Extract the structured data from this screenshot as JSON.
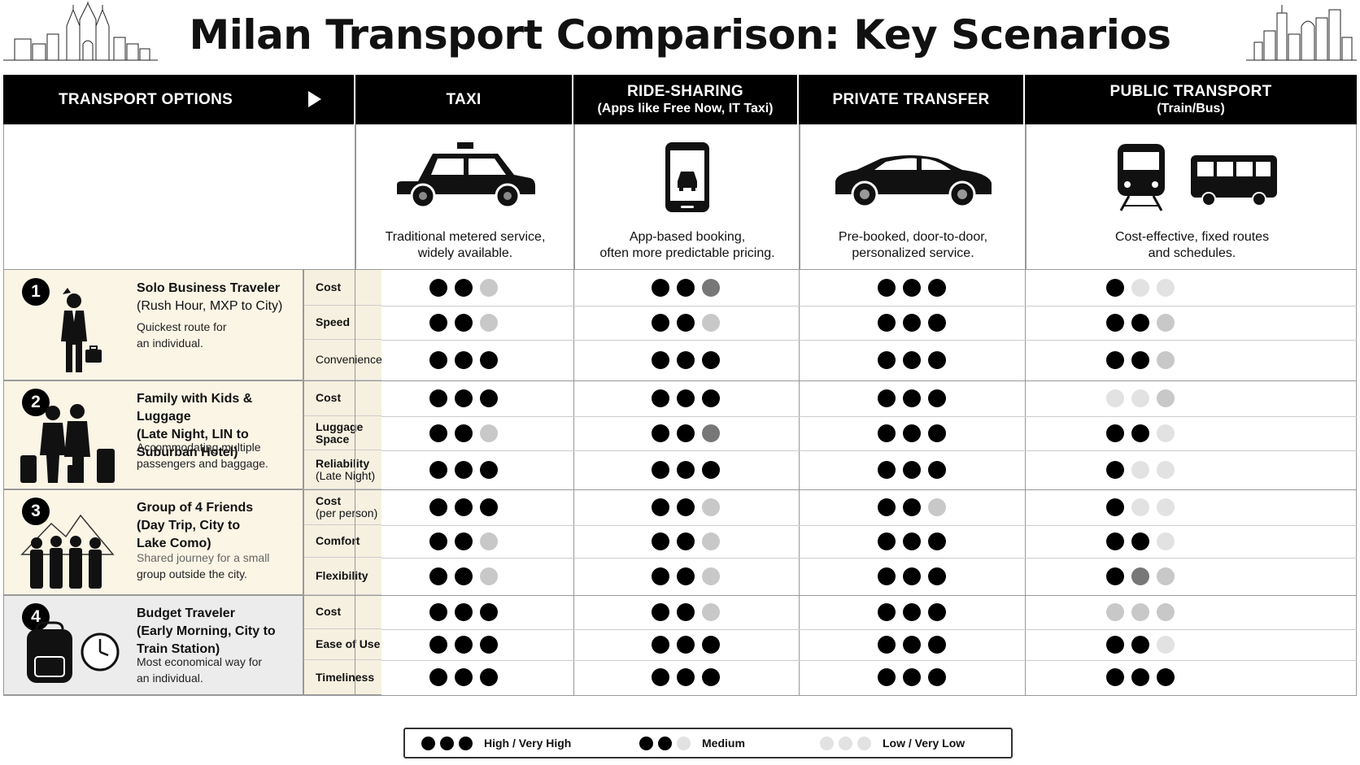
{
  "title": "Milan Transport Comparison: Key Scenarios",
  "header": {
    "options_label": "TRANSPORT OPTIONS",
    "columns": [
      {
        "main": "TAXI",
        "sub": ""
      },
      {
        "main": "RIDE-SHARING",
        "sub": "(Apps like Free Now, IT Taxi)"
      },
      {
        "main": "PRIVATE TRANSFER",
        "sub": ""
      },
      {
        "main": "PUBLIC TRANSPORT",
        "sub": "(Train/Bus)"
      }
    ]
  },
  "descriptions": [
    [
      "Traditional metered service,",
      "widely available."
    ],
    [
      "App-based booking,",
      "often more predictable pricing."
    ],
    [
      "Pre-booked, door-to-door,",
      "personalized service."
    ],
    [
      "Cost-effective, fixed routes",
      "and schedules."
    ]
  ],
  "scenarios": [
    {
      "number": "1",
      "name": [
        "Solo Business Traveler",
        "(Rush Hour, MXP to City)"
      ],
      "description": [
        "Quickest route for",
        "an individual."
      ],
      "metrics": [
        {
          "label": [
            "Cost"
          ],
          "ratings": [
            [
              3,
              3,
              1
            ],
            [
              3,
              3,
              2
            ],
            [
              3,
              3,
              3
            ],
            [
              3,
              0,
              0
            ]
          ]
        },
        {
          "label": [
            "Speed"
          ],
          "ratings": [
            [
              3,
              3,
              1
            ],
            [
              3,
              3,
              1
            ],
            [
              3,
              3,
              3
            ],
            [
              3,
              3,
              1
            ]
          ]
        },
        {
          "label": [
            "Convenience"
          ],
          "ratings": [
            [
              3,
              3,
              3
            ],
            [
              3,
              3,
              3
            ],
            [
              3,
              3,
              3
            ],
            [
              3,
              3,
              1
            ]
          ]
        }
      ]
    },
    {
      "number": "2",
      "name": [
        "Family with Kids & Luggage",
        "(Late Night, LIN to",
        "Suburban Hotel)"
      ],
      "description": [
        "Accommodating multiple",
        "passengers and baggage."
      ],
      "metrics": [
        {
          "label": [
            "Cost"
          ],
          "ratings": [
            [
              3,
              3,
              3
            ],
            [
              3,
              3,
              3
            ],
            [
              3,
              3,
              3
            ],
            [
              0,
              0,
              1
            ]
          ]
        },
        {
          "label": [
            "Luggage",
            "Space"
          ],
          "ratings": [
            [
              3,
              3,
              1
            ],
            [
              3,
              3,
              2
            ],
            [
              3,
              3,
              3
            ],
            [
              3,
              3,
              0
            ]
          ]
        },
        {
          "label": [
            "Reliability",
            "(Late Night)"
          ],
          "ratings": [
            [
              3,
              3,
              3
            ],
            [
              3,
              3,
              3
            ],
            [
              3,
              3,
              3
            ],
            [
              3,
              0,
              0
            ]
          ]
        }
      ]
    },
    {
      "number": "3",
      "name": [
        "Group of 4 Friends",
        "(Day Trip, City to",
        "Lake Como)"
      ],
      "description": [
        "Shared journey for a small",
        "group outside the city."
      ],
      "metrics": [
        {
          "label": [
            "Cost",
            "(per person)"
          ],
          "ratings": [
            [
              3,
              3,
              3
            ],
            [
              3,
              3,
              1
            ],
            [
              3,
              3,
              1
            ],
            [
              3,
              0,
              0
            ]
          ]
        },
        {
          "label": [
            "Comfort"
          ],
          "ratings": [
            [
              3,
              3,
              1
            ],
            [
              3,
              3,
              1
            ],
            [
              3,
              3,
              3
            ],
            [
              3,
              3,
              0
            ]
          ]
        },
        {
          "label": [
            "Flexibility"
          ],
          "ratings": [
            [
              3,
              3,
              1
            ],
            [
              3,
              3,
              1
            ],
            [
              3,
              3,
              3
            ],
            [
              3,
              2,
              1
            ]
          ]
        }
      ]
    },
    {
      "number": "4",
      "name": [
        "Budget Traveler",
        "(Early Morning, City to",
        "Train Station)"
      ],
      "description": [
        "Most economical way for",
        "an individual."
      ],
      "metrics": [
        {
          "label": [
            "Cost"
          ],
          "ratings": [
            [
              3,
              3,
              3
            ],
            [
              3,
              3,
              1
            ],
            [
              3,
              3,
              3
            ],
            [
              1,
              1,
              1
            ]
          ]
        },
        {
          "label": [
            "Ease of Use"
          ],
          "ratings": [
            [
              3,
              3,
              3
            ],
            [
              3,
              3,
              3
            ],
            [
              3,
              3,
              3
            ],
            [
              3,
              3,
              0
            ]
          ]
        },
        {
          "label": [
            "Timeliness"
          ],
          "ratings": [
            [
              3,
              3,
              3
            ],
            [
              3,
              3,
              3
            ],
            [
              3,
              3,
              3
            ],
            [
              3,
              3,
              3
            ]
          ]
        }
      ]
    }
  ],
  "legend": [
    {
      "label": "High / Very High",
      "ratings": [
        3,
        3,
        3
      ]
    },
    {
      "label": "Medium",
      "ratings": [
        3,
        3,
        0
      ]
    },
    {
      "label": "Low / Very Low",
      "ratings": [
        0,
        0,
        0
      ]
    }
  ],
  "colors": {
    "dark_dot": "#000000",
    "mid_dot": "#777777",
    "light_dot": "#c8c8c8",
    "scenario_bg": "#fbf5e6",
    "metric_bg": "#f6f0e0"
  }
}
